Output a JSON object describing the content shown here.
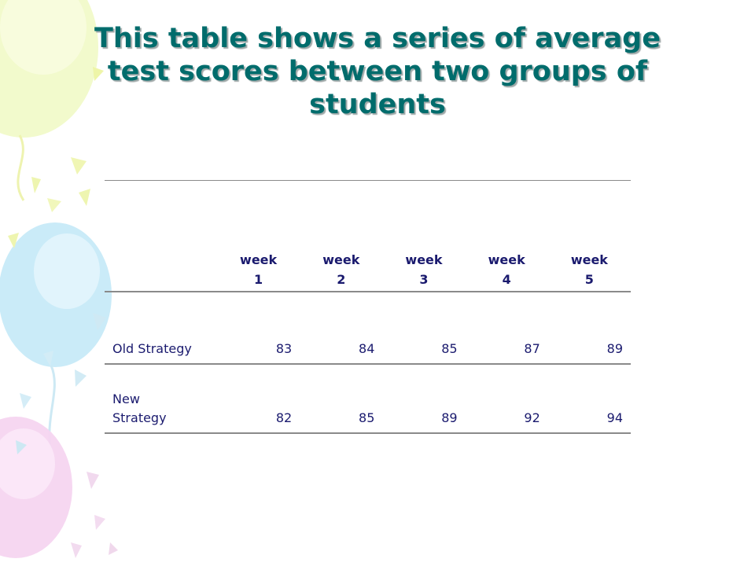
{
  "slide": {
    "title_lines": [
      "This table shows a series of average",
      "test scores between two groups of",
      "students"
    ]
  },
  "table": {
    "columns": [
      [
        "week",
        "1"
      ],
      [
        "week",
        "2"
      ],
      [
        "week",
        "3"
      ],
      [
        "week",
        "4"
      ],
      [
        "week",
        "5"
      ]
    ],
    "rows": [
      {
        "label_lines": [
          "Old Strategy"
        ],
        "values": [
          "83",
          "84",
          "85",
          "87",
          "89"
        ]
      },
      {
        "label_lines": [
          "New",
          "Strategy"
        ],
        "values": [
          "82",
          "85",
          "89",
          "92",
          "94"
        ]
      }
    ]
  },
  "theme": {
    "title_color": "#006c6c",
    "table_text_color": "#1a1a6e",
    "rule_color": "#8a8a8a",
    "decoration": "pastel-balloons"
  }
}
